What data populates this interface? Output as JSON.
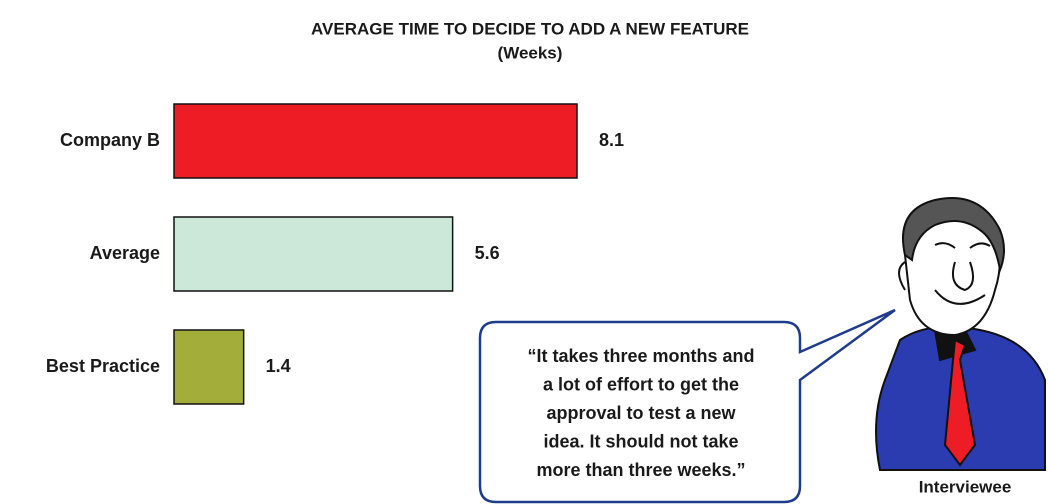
{
  "chart_data": {
    "type": "bar",
    "orientation": "horizontal",
    "title": "AVERAGE TIME TO DECIDE TO ADD A NEW FEATURE",
    "subtitle": "(Weeks)",
    "categories": [
      "Company B",
      "Average",
      "Best Practice"
    ],
    "values": [
      8.1,
      5.6,
      1.4
    ],
    "colors": [
      "#ee1c25",
      "#cce8d8",
      "#a3ae3a"
    ],
    "annotation": {
      "lines": [
        "“It takes three months and",
        "a lot of effort to get the",
        "approval to test a new",
        "idea. It should not take",
        "more than three weeks.”"
      ]
    },
    "figure_label": "Interviewee"
  }
}
